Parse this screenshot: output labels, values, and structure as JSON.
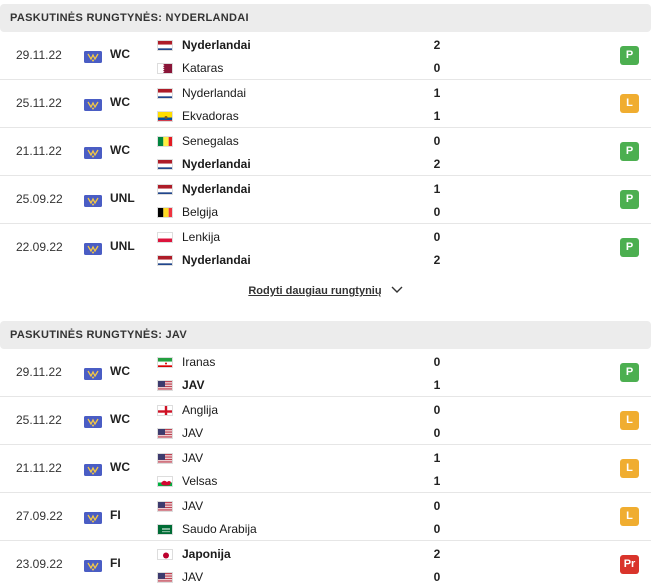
{
  "sections": [
    {
      "title": "PASKUTINĖS RUNGTYNĖS: NYDERLANDAI",
      "matches": [
        {
          "date": "29.11.22",
          "comp": "WC",
          "home": "Nyderlandai",
          "home_flag": "nl",
          "away": "Kataras",
          "away_flag": "qa",
          "home_score": "2",
          "away_score": "0",
          "winner": "home",
          "result": "P",
          "result_color": "#4caf50"
        },
        {
          "date": "25.11.22",
          "comp": "WC",
          "home": "Nyderlandai",
          "home_flag": "nl",
          "away": "Ekvadoras",
          "away_flag": "ec",
          "home_score": "1",
          "away_score": "1",
          "winner": "none",
          "result": "L",
          "result_color": "#f0ad30"
        },
        {
          "date": "21.11.22",
          "comp": "WC",
          "home": "Senegalas",
          "home_flag": "sn",
          "away": "Nyderlandai",
          "away_flag": "nl",
          "home_score": "0",
          "away_score": "2",
          "winner": "away",
          "result": "P",
          "result_color": "#4caf50"
        },
        {
          "date": "25.09.22",
          "comp": "UNL",
          "home": "Nyderlandai",
          "home_flag": "nl",
          "away": "Belgija",
          "away_flag": "be",
          "home_score": "1",
          "away_score": "0",
          "winner": "home",
          "result": "P",
          "result_color": "#4caf50"
        },
        {
          "date": "22.09.22",
          "comp": "UNL",
          "home": "Lenkija",
          "home_flag": "pl",
          "away": "Nyderlandai",
          "away_flag": "nl",
          "home_score": "0",
          "away_score": "2",
          "winner": "away",
          "result": "P",
          "result_color": "#4caf50"
        }
      ]
    },
    {
      "title": "PASKUTINĖS RUNGTYNĖS: JAV",
      "matches": [
        {
          "date": "29.11.22",
          "comp": "WC",
          "home": "Iranas",
          "home_flag": "ir",
          "away": "JAV",
          "away_flag": "us",
          "home_score": "0",
          "away_score": "1",
          "winner": "away",
          "result": "P",
          "result_color": "#4caf50"
        },
        {
          "date": "25.11.22",
          "comp": "WC",
          "home": "Anglija",
          "home_flag": "en",
          "away": "JAV",
          "away_flag": "us",
          "home_score": "0",
          "away_score": "0",
          "winner": "none",
          "result": "L",
          "result_color": "#f0ad30"
        },
        {
          "date": "21.11.22",
          "comp": "WC",
          "home": "JAV",
          "home_flag": "us",
          "away": "Velsas",
          "away_flag": "wa",
          "home_score": "1",
          "away_score": "1",
          "winner": "none",
          "result": "L",
          "result_color": "#f0ad30"
        },
        {
          "date": "27.09.22",
          "comp": "FI",
          "home": "JAV",
          "home_flag": "us",
          "away": "Saudo Arabija",
          "away_flag": "sa",
          "home_score": "0",
          "away_score": "0",
          "winner": "none",
          "result": "L",
          "result_color": "#f0ad30"
        },
        {
          "date": "23.09.22",
          "comp": "FI",
          "home": "Japonija",
          "home_flag": "jp",
          "away": "JAV",
          "away_flag": "us",
          "home_score": "2",
          "away_score": "0",
          "winner": "home",
          "result": "Pr",
          "result_color": "#d9342b"
        }
      ]
    }
  ],
  "show_more": "Rodyti daugiau rungtynių",
  "show_more_icon": "chevron-down-icon"
}
